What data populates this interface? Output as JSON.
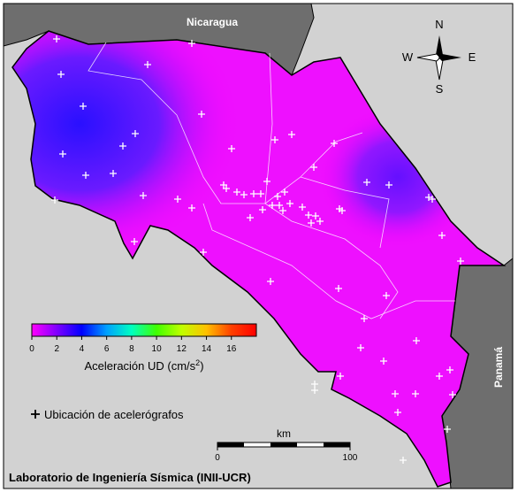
{
  "map": {
    "countries": {
      "north": "Nicaragua",
      "south": "Panamá"
    },
    "compass": {
      "n": "N",
      "s": "S",
      "w": "W",
      "e": "E"
    },
    "colorbar": {
      "lim": [
        0,
        18
      ],
      "ticks": [
        0,
        2,
        4,
        6,
        8,
        10,
        12,
        14,
        16
      ],
      "colors": [
        "#ff00ff",
        "#8000ff",
        "#0000ff",
        "#00a0ff",
        "#00ffc0",
        "#40ff00",
        "#c0ff00",
        "#ffc000",
        "#ff4000",
        "#ff0000"
      ],
      "label": "Aceleración UD (cm/s",
      "label_sup": "2",
      "label_end": ")"
    },
    "legend": "Ubicación de acelerógrafos",
    "scalebar": {
      "unit": "km",
      "lim": [
        0,
        100
      ],
      "ticks": [
        0,
        100
      ]
    },
    "footer": "Laboratorio de Ingeniería Sísmica (INII-UCR)"
  }
}
